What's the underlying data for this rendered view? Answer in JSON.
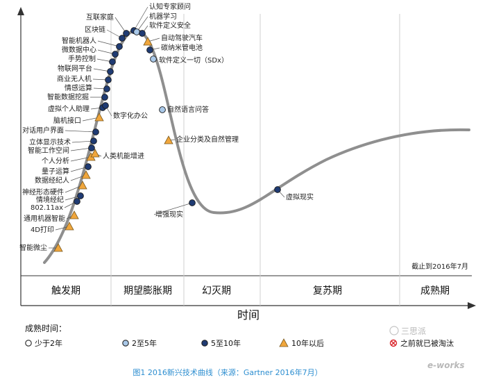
{
  "phases": [
    "触发期",
    "期望膨胀期",
    "幻灭期",
    "复苏期",
    "成熟期"
  ],
  "x_axis_title": "时间",
  "as_of_note": "截止到2016年7月",
  "legend": {
    "title": "成熟时间：",
    "items": [
      {
        "key": "lt2",
        "label": "少于2年",
        "color": "#ffffff"
      },
      {
        "key": "2to5",
        "label": "2至5年",
        "color": "#a9c8e8"
      },
      {
        "key": "5to10",
        "label": "5至10年",
        "color": "#1f3b73"
      },
      {
        "key": "gt10",
        "label": "10年以后",
        "color": "#f0a63c"
      },
      {
        "key": "obs",
        "label": "之前就已被淘汰",
        "color": "#d9262c"
      }
    ]
  },
  "technologies": [
    {
      "label": "智能微尘",
      "cat": "gt10"
    },
    {
      "label": "4D打印",
      "cat": "gt10"
    },
    {
      "label": "通用机器智能",
      "cat": "gt10"
    },
    {
      "label": "802.11ax",
      "cat": "5to10"
    },
    {
      "label": "情境经纪",
      "cat": "5to10"
    },
    {
      "label": "神经形态硬件",
      "cat": "gt10"
    },
    {
      "label": "数据经纪人",
      "cat": "gt10"
    },
    {
      "label": "量子运算",
      "cat": "5to10"
    },
    {
      "label": "个人分析",
      "cat": "gt10"
    },
    {
      "label": "人类机能增进",
      "cat": "gt10"
    },
    {
      "label": "智能工作空间",
      "cat": "5to10"
    },
    {
      "label": "立体显示技术",
      "cat": "5to10"
    },
    {
      "label": "对话用户界面",
      "cat": "5to10"
    },
    {
      "label": "脑机接口",
      "cat": "gt10"
    },
    {
      "label": "虚拟个人助理",
      "cat": "5to10"
    },
    {
      "label": "数字化办公",
      "cat": "5to10"
    },
    {
      "label": "智能数据挖掘",
      "cat": "5to10"
    },
    {
      "label": "情感运算",
      "cat": "5to10"
    },
    {
      "label": "商业无人机",
      "cat": "5to10"
    },
    {
      "label": "物联网平台",
      "cat": "5to10"
    },
    {
      "label": "手势控制",
      "cat": "5to10"
    },
    {
      "label": "微数据中心",
      "cat": "5to10"
    },
    {
      "label": "智能机器人",
      "cat": "5to10"
    },
    {
      "label": "区块链",
      "cat": "5to10"
    },
    {
      "label": "互联家庭",
      "cat": "5to10"
    },
    {
      "label": "认知专家顾问",
      "cat": "5to10"
    },
    {
      "label": "机器学习",
      "cat": "2to5"
    },
    {
      "label": "软件定义安全",
      "cat": "5to10"
    },
    {
      "label": "自动驾驶汽车",
      "cat": "gt10"
    },
    {
      "label": "碳纳米管电池",
      "cat": "5to10"
    },
    {
      "label": "软件定义一切（SDx）",
      "cat": "2to5"
    },
    {
      "label": "自然语言问答",
      "cat": "2to5"
    },
    {
      "label": "企业分类及自然管理",
      "cat": "gt10"
    },
    {
      "label": "增强现实",
      "cat": "5to10"
    },
    {
      "label": "虚拟现实",
      "cat": "5to10"
    }
  ],
  "watermarks": [
    "三思派",
    "e-works"
  ],
  "caption": "图1  2016新兴技术曲线（来源：Gartner 2016年7月）"
}
